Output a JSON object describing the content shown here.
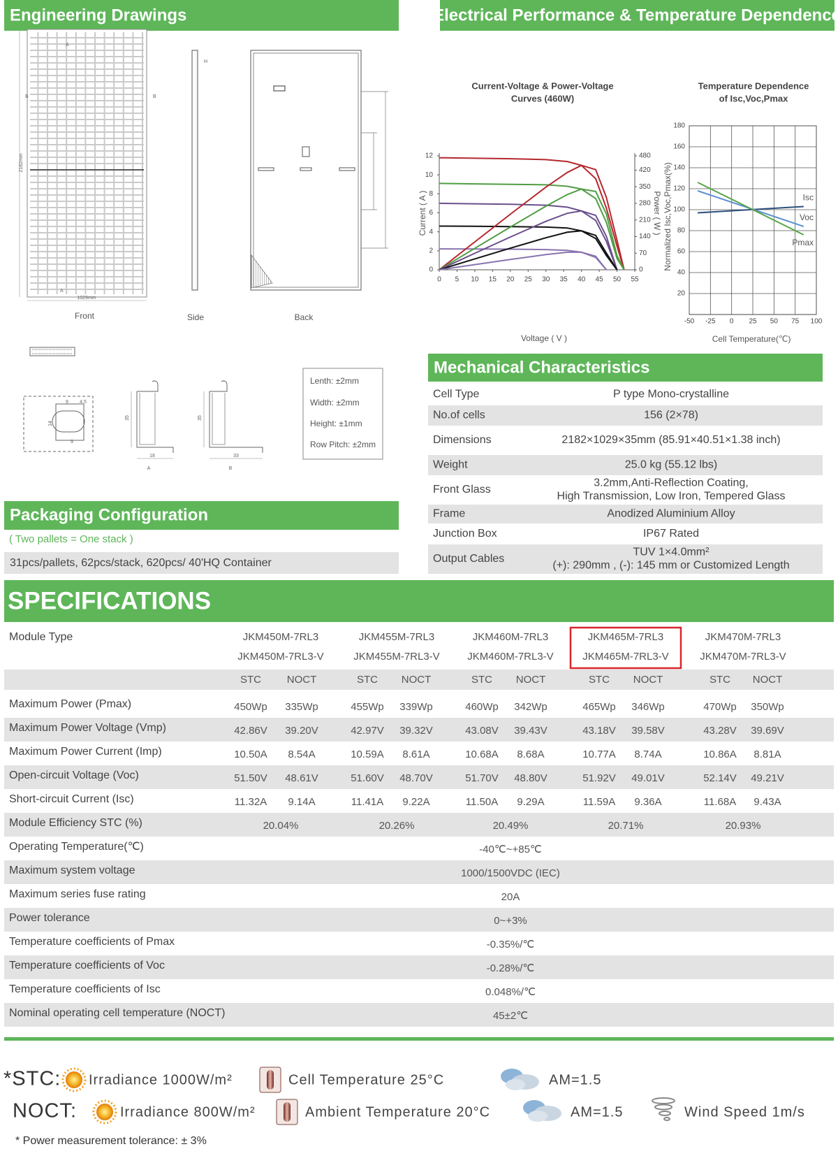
{
  "engineering": {
    "title": "Engineering Drawings",
    "views": [
      "Front",
      "Side",
      "Back"
    ],
    "dimension_labels": [
      "2182mm",
      "1029mm"
    ],
    "section_labels": [
      "A",
      "B",
      "H"
    ],
    "profile_dims": [
      "9",
      "4.5",
      "14",
      "9",
      "35",
      "18",
      "35",
      "33"
    ],
    "tolerances": [
      "Lenth: ±2mm",
      "Width: ±2mm",
      "Height: ±1mm",
      "Row Pitch: ±2mm"
    ]
  },
  "electrical": {
    "title": "Electrical Performance & Temperature Dependence",
    "charts": [
      {
        "type": "line",
        "title": [
          "Current-Voltage & Power-Voltage",
          "Curves (460W)"
        ],
        "x_label": "Voltage ( V )",
        "y_label": "Current ( A )",
        "y2_label": "Power ( W )",
        "x": [
          0,
          10,
          20,
          30,
          36,
          40,
          44,
          47,
          50,
          52
        ],
        "xlim": [
          0,
          55
        ],
        "xticks": [
          0,
          5,
          10,
          15,
          20,
          25,
          30,
          35,
          40,
          45,
          50,
          55
        ],
        "ylim": [
          0,
          12
        ],
        "yticks": [
          0,
          2,
          4,
          6,
          8,
          10,
          12
        ],
        "y2lim": [
          0,
          480
        ],
        "y2ticks": [
          0,
          70,
          140,
          210,
          280,
          350,
          420,
          480
        ],
        "series": [
          {
            "color": "#b5282e",
            "values": [
              11.8,
              11.75,
              11.7,
              11.6,
              11.4,
              11.0,
              9.6,
              6.5,
              2.5,
              0
            ]
          },
          {
            "color": "#4f9d43",
            "values": [
              9.1,
              9.05,
              9.0,
              8.95,
              8.8,
              8.5,
              7.5,
              5.0,
              1.2,
              0
            ]
          },
          {
            "color": "#6a4f8c",
            "values": [
              7.0,
              6.95,
              6.9,
              6.8,
              6.6,
              6.2,
              5.2,
              3.0,
              0,
              null
            ]
          },
          {
            "color": "#111111",
            "values": [
              4.6,
              4.58,
              4.55,
              4.5,
              4.4,
              4.1,
              3.3,
              1.5,
              0,
              null
            ]
          },
          {
            "color": "#8a74b0",
            "values": [
              2.2,
              2.19,
              2.17,
              2.13,
              2.05,
              1.85,
              1.3,
              0,
              null,
              null
            ]
          },
          {
            "color": "#b5282e",
            "axis": "y2",
            "values": [
              0,
              117.5,
              234,
              348,
              410,
              440,
              422,
              305,
              125,
              0
            ]
          },
          {
            "color": "#4f9d43",
            "axis": "y2",
            "values": [
              0,
              90.5,
              180,
              268,
              317,
              340,
              330,
              235,
              60,
              0
            ]
          },
          {
            "color": "#6a4f8c",
            "axis": "y2",
            "values": [
              0,
              69.5,
              138,
              204,
              238,
              248,
              229,
              141,
              0,
              null
            ]
          },
          {
            "color": "#111111",
            "axis": "y2",
            "values": [
              0,
              45.8,
              91,
              135,
              158,
              164,
              145,
              70.5,
              0,
              null
            ]
          },
          {
            "color": "#8a74b0",
            "axis": "y2",
            "values": [
              0,
              21.9,
              43.4,
              63.9,
              73.8,
              74,
              57.2,
              0,
              null,
              null
            ]
          }
        ]
      },
      {
        "type": "line",
        "title": [
          "Temperature Dependence",
          "of Isc,Voc,Pmax"
        ],
        "x_label": "Cell Temperature(℃)",
        "y_label": "Normalized Isc,Voc,Pmax(%)",
        "x": [
          -40,
          85
        ],
        "xlim": [
          -50,
          100
        ],
        "xticks": [
          -50,
          -25,
          0,
          25,
          50,
          75,
          100
        ],
        "ylim": [
          0,
          180
        ],
        "yticks": [
          20,
          40,
          60,
          80,
          100,
          120,
          140,
          160,
          180
        ],
        "grid": true,
        "series": [
          {
            "name": "Isc",
            "color": "#2c4f7c",
            "values": [
              97,
              103
            ]
          },
          {
            "name": "Voc",
            "color": "#5b8fd0",
            "values": [
              118,
              84
            ]
          },
          {
            "name": "Pmax",
            "color": "#5aa64a",
            "values": [
              126,
              76
            ]
          }
        ]
      }
    ]
  },
  "mechanical": {
    "title": "Mechanical Characteristics",
    "rows": [
      {
        "label": "Cell Type",
        "value": "P type Mono-crystalline"
      },
      {
        "label": "No.of cells",
        "value": "156 (2×78)"
      },
      {
        "label": "Dimensions",
        "value": "2182×1029×35mm (85.91×40.51×1.38 inch)"
      },
      {
        "label": "Weight",
        "value": "25.0 kg (55.12 lbs)"
      },
      {
        "label": "Front Glass",
        "value": [
          "3.2mm,Anti-Reflection Coating,",
          "High Transmission, Low Iron, Tempered Glass"
        ]
      },
      {
        "label": "Frame",
        "value": "Anodized Aluminium Alloy"
      },
      {
        "label": "Junction Box",
        "value": "IP67 Rated"
      },
      {
        "label": "Output Cables",
        "value": [
          "TUV  1×4.0mm²",
          "(+): 290mm , (-): 145 mm or Customized Length"
        ]
      }
    ]
  },
  "packaging": {
    "title": "Packaging Configuration",
    "note": "( Two pallets = One stack )",
    "detail": "31pcs/pallets, 62pcs/stack, 620pcs/ 40'HQ Container"
  },
  "specifications": {
    "title": "SPECIFICATIONS",
    "module_type_label": "Module Type",
    "models": [
      [
        "JKM450M-7RL3",
        "JKM450M-7RL3-V"
      ],
      [
        "JKM455M-7RL3",
        "JKM455M-7RL3-V"
      ],
      [
        "JKM460M-7RL3",
        "JKM460M-7RL3-V"
      ],
      [
        "JKM465M-7RL3",
        "JKM465M-7RL3-V"
      ],
      [
        "JKM470M-7RL3",
        "JKM470M-7RL3-V"
      ]
    ],
    "highlight_model": 3,
    "conditions": [
      "STC",
      "NOCT"
    ],
    "rows": [
      {
        "label": "Maximum Power (Pmax)",
        "values": [
          "450Wp",
          "335Wp",
          "455Wp",
          "339Wp",
          "460Wp",
          "342Wp",
          "465Wp",
          "346Wp",
          "470Wp",
          "350Wp"
        ]
      },
      {
        "label": "Maximum Power Voltage (Vmp)",
        "values": [
          "42.86V",
          "39.20V",
          "42.97V",
          "39.32V",
          "43.08V",
          "39.43V",
          "43.18V",
          "39.58V",
          "43.28V",
          "39.69V"
        ]
      },
      {
        "label": "Maximum Power Current (Imp)",
        "values": [
          "10.50A",
          "8.54A",
          "10.59A",
          "8.61A",
          "10.68A",
          "8.68A",
          "10.77A",
          "8.74A",
          "10.86A",
          "8.81A"
        ]
      },
      {
        "label": "Open-circuit Voltage (Voc)",
        "values": [
          "51.50V",
          "48.61V",
          "51.60V",
          "48.70V",
          "51.70V",
          "48.80V",
          "51.92V",
          "49.01V",
          "52.14V",
          "49.21V"
        ]
      },
      {
        "label": "Short-circuit Current (Isc)",
        "values": [
          "11.32A",
          "9.14A",
          "11.41A",
          "9.22A",
          "11.50A",
          "9.29A",
          "11.59A",
          "9.36A",
          "11.68A",
          "9.43A"
        ]
      },
      {
        "label": "Module Efficiency STC (%)",
        "values": [
          "20.04%",
          "20.26%",
          "20.49%",
          "20.71%",
          "20.93%"
        ]
      },
      {
        "label": "Operating Temperature(℃)",
        "values": [
          "-40℃~+85℃"
        ]
      },
      {
        "label": "Maximum system voltage",
        "values": [
          "1000/1500VDC (IEC)"
        ]
      },
      {
        "label": "Maximum series fuse rating",
        "values": [
          "20A"
        ]
      },
      {
        "label": "Power tolerance",
        "values": [
          "0~+3%"
        ]
      },
      {
        "label": "Temperature coefficients of Pmax",
        "values": [
          "-0.35%/℃"
        ]
      },
      {
        "label": "Temperature coefficients of Voc",
        "values": [
          "-0.28%/℃"
        ]
      },
      {
        "label": "Temperature coefficients of Isc",
        "values": [
          "0.048%/℃"
        ]
      },
      {
        "label": "Nominal operating cell temperature  (NOCT)",
        "values": [
          "45±2℃"
        ]
      }
    ]
  },
  "footer": {
    "stc": {
      "label": "*STC:",
      "items": [
        "Irradiance 1000W/m²",
        "Cell Temperature 25°C",
        "AM=1.5"
      ]
    },
    "noct": {
      "label": "NOCT:",
      "items": [
        "Irradiance 800W/m²",
        "Ambient Temperature 20°C",
        "AM=1.5",
        "Wind Speed 1m/s"
      ]
    },
    "note": "* Power measurement tolerance: ± 3%"
  }
}
